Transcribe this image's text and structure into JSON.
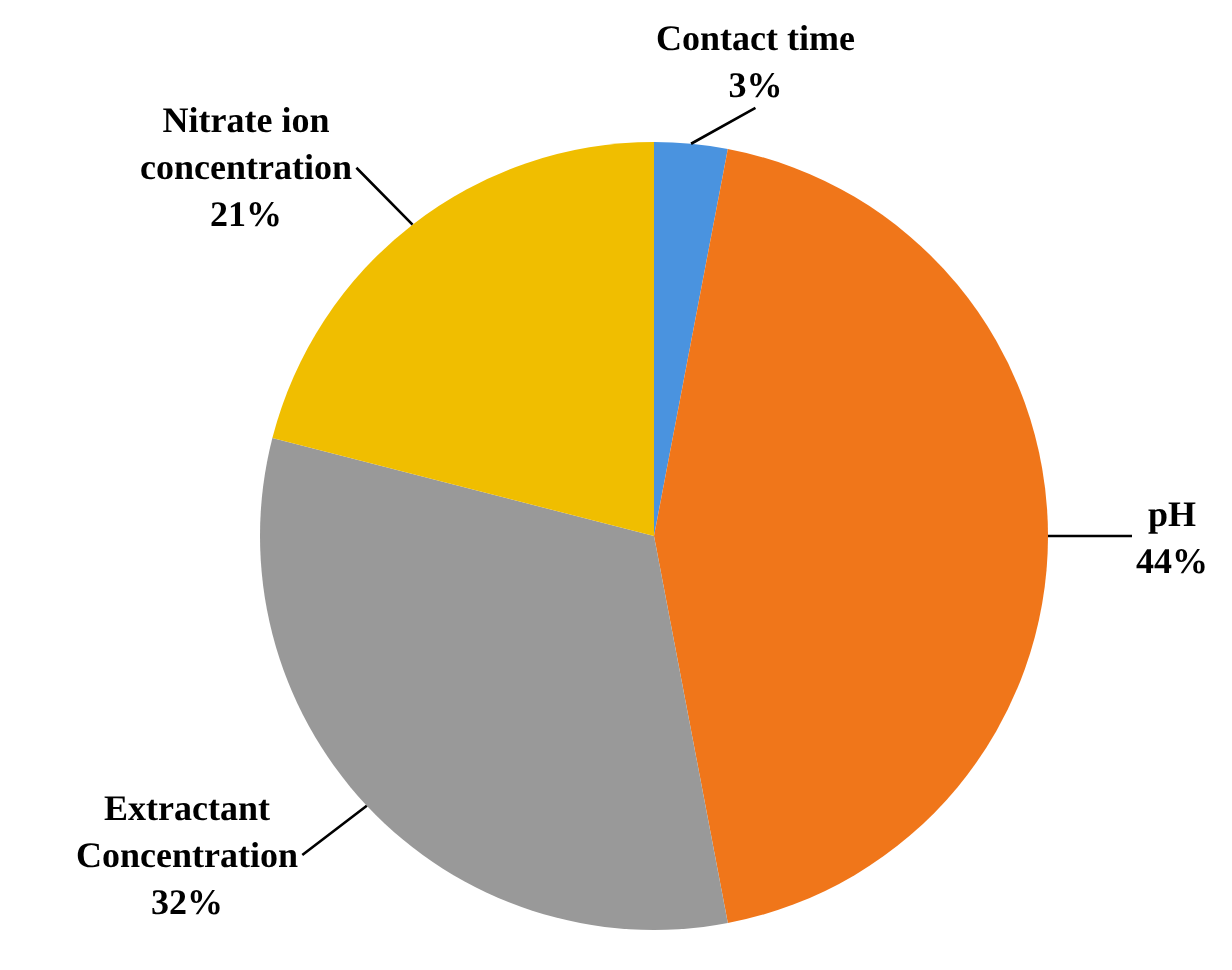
{
  "chart_data": {
    "type": "pie",
    "categories": [
      "Contact time",
      "pH",
      "Extractant Concentration",
      "Nitrate ion concentration"
    ],
    "values": [
      3,
      44,
      32,
      21
    ],
    "value_labels": [
      "3%",
      "44%",
      "32%",
      "21%"
    ],
    "colors": [
      "#4a93df",
      "#f0761a",
      "#999999",
      "#f0be00"
    ],
    "legend": false
  }
}
